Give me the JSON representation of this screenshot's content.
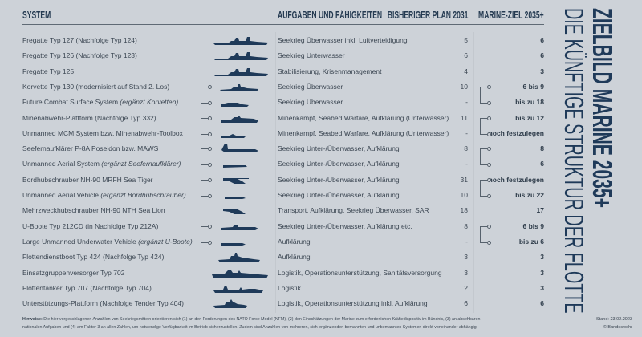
{
  "title": {
    "line1": "ZIELBILD MARINE 2035+",
    "line2": "DIE KÜNFTIGE STRUKTUR DER FLOTTE"
  },
  "headers": {
    "system": "SYSTEM",
    "tasks": "AUFGABEN UND FÄHIGKEITEN",
    "plan": "BISHERIGER PLAN 2031",
    "target": "MARINE-ZIEL 2035+"
  },
  "colors": {
    "background": "#cdd2d8",
    "accent": "#1f3a59",
    "text": "#3c4753"
  },
  "rows": [
    {
      "system": "Fregatte Typ 127 (Nachfolge Typ 124)",
      "system_note": "",
      "icon": "frigate-icon",
      "tasks": "Seekrieg Überwasser inkl. Luftverteidigung",
      "plan": "5",
      "target": "6"
    },
    {
      "system": "Fregatte Typ 126 (Nachfolge Typ 123)",
      "system_note": "",
      "icon": "frigate-icon",
      "tasks": "Seekrieg Unterwasser",
      "plan": "6",
      "target": "6"
    },
    {
      "system": "Fregatte Typ 125",
      "system_note": "",
      "icon": "frigate-icon",
      "tasks": "Stabilisierung, Krisenmanagement",
      "plan": "4",
      "target": "3"
    },
    {
      "system": "Korvette Typ 130 (modernisiert auf Stand 2. Los)",
      "system_note": "",
      "icon": "corvette-icon",
      "tasks": "Seekrieg Überwasser",
      "plan": "10",
      "target": "6 bis 9"
    },
    {
      "system": "Future Combat Surface System ",
      "system_note": "(ergänzt Korvetten)",
      "icon": "small-vessel-icon",
      "tasks": "Seekrieg Überwasser",
      "plan": "-",
      "target": "bis zu 18"
    },
    {
      "system": "Minenabwehr-Plattform (Nachfolge Typ 332)",
      "system_note": "",
      "icon": "minehunter-icon",
      "tasks": "Minenkampf, Seabed Warfare, Aufklärung (Unterwasser)",
      "plan": "11",
      "target": "bis zu 12"
    },
    {
      "system": "Unmanned MCM System bzw. Minenabwehr-Toolbox",
      "system_note": "",
      "icon": "unmanned-boat-icon",
      "tasks": "Minenkampf, Seabed Warfare, Aufklärung (Unterwasser)",
      "plan": "-",
      "target": "noch festzulegen"
    },
    {
      "system": "Seefernaufklärer P-8A Poseidon bzw. MAWS",
      "system_note": "",
      "icon": "aircraft-icon",
      "tasks": "Seekrieg Unter-/Überwasser, Aufklärung",
      "plan": "8",
      "target": "8"
    },
    {
      "system": "Unmanned Aerial System ",
      "system_note": "(ergänzt Seefernaufklärer)",
      "icon": "drone-icon",
      "tasks": "Seekrieg Unter-/Überwasser, Aufklärung",
      "plan": "-",
      "target": "6"
    },
    {
      "system": "Bordhubschrauber NH-90 MRFH Sea Tiger",
      "system_note": "",
      "icon": "helicopter-icon",
      "tasks": "Seekrieg Unter-/Überwasser, Aufklärung",
      "plan": "31",
      "target": "noch festzulegen"
    },
    {
      "system": "Unmanned Aerial Vehicle ",
      "system_note": "(ergänzt Bordhubschrauber)",
      "icon": "uav-icon",
      "tasks": "Seekrieg Unter-/Überwasser, Aufklärung",
      "plan": "10",
      "target": "bis zu 22"
    },
    {
      "system": "Mehrzweckhubschrauber NH-90 NTH Sea Lion",
      "system_note": "",
      "icon": "helicopter-icon",
      "tasks": "Transport, Aufklärung, Seekrieg Überwasser, SAR",
      "plan": "18",
      "target": "17"
    },
    {
      "system": "U-Boote Typ 212CD (in Nachfolge Typ 212A)",
      "system_note": "",
      "icon": "submarine-icon",
      "tasks": "Seekrieg Unter-/Überwasser, Aufklärung etc.",
      "plan": "8",
      "target": "6 bis 9"
    },
    {
      "system": "Large Unmanned Underwater Vehicle ",
      "system_note": "(ergänzt U-Boote)",
      "icon": "underwater-vehicle-icon",
      "tasks": "Aufklärung",
      "plan": "-",
      "target": "bis zu 6"
    },
    {
      "system": "Flottendienstboot Typ 424 (Nachfolge Typ 424)",
      "system_note": "",
      "icon": "fleet-service-boat-icon",
      "tasks": "Aufklärung",
      "plan": "3",
      "target": "3"
    },
    {
      "system": "Einsatzgruppenversorger Typ 702",
      "system_note": "",
      "icon": "supply-ship-icon",
      "tasks": "Logistik, Operationsunterstützung, Sanitätsversorgung",
      "plan": "3",
      "target": "3"
    },
    {
      "system": "Flottentanker Typ 707 (Nachfolge Typ 704)",
      "system_note": "",
      "icon": "tanker-icon",
      "tasks": "Logistik",
      "plan": "2",
      "target": "3"
    },
    {
      "system": "Unterstützungs-Plattform (Nachfolge Tender Typ 404)",
      "system_note": "",
      "icon": "tender-icon",
      "tasks": "Logistik, Operationsunterstützung inkl. Aufklärung",
      "plan": "6",
      "target": "6"
    }
  ],
  "footer": {
    "label": "Hinweise:",
    "line1": " Die hier vorgeschlagenen Anzahlen von Seekriegsmitteln orientieren sich (1) an den Forderungen des NATO Force Model (NFM), (2) den Einschätzungen der Marine zum erforderlichen Kräftedispositiv im Bündnis, (3) an absehbaren",
    "line2": "nationalen Aufgaben und (4) am Faktor 3 an allen Zahlen, um notwendige Verfügbarkeit im Betrieb sicherzustellen. Zudem sind Anzahlen von mehreren, sich ergänzenden bemannten und unbemannten Systemen direkt voneinander abhängig.",
    "date": "Stand: 23.02.2023",
    "credit": "© Bundeswehr"
  }
}
